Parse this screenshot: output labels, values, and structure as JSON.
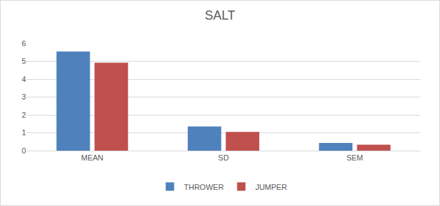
{
  "chart_data": {
    "type": "bar",
    "title": "SALT",
    "categories": [
      "MEAN",
      "SD",
      "SEM"
    ],
    "series": [
      {
        "name": "THROWER",
        "color": "#4f81bd",
        "values": [
          5.55,
          1.35,
          0.43
        ]
      },
      {
        "name": "JUMPER",
        "color": "#c0504d",
        "values": [
          4.92,
          1.05,
          0.33
        ]
      }
    ],
    "ylim": [
      0,
      6
    ],
    "yticks": [
      0,
      1,
      2,
      3,
      4,
      5,
      6
    ],
    "grid": true,
    "legend": "bottom"
  }
}
